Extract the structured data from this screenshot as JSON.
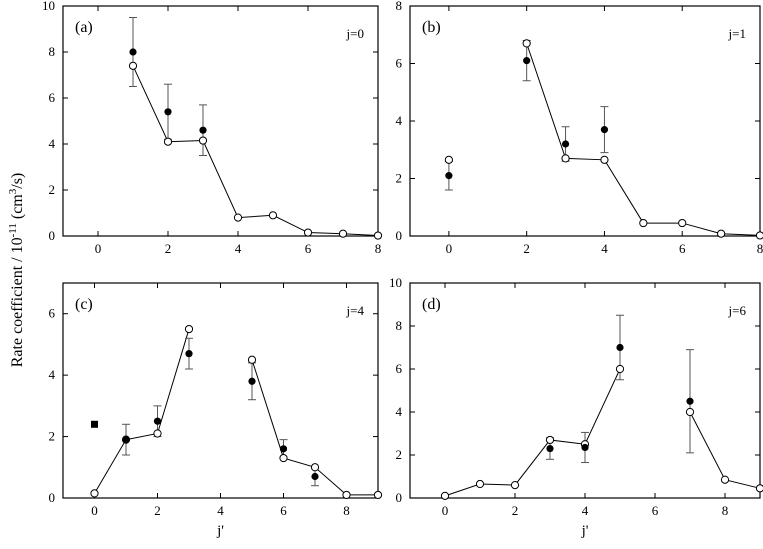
{
  "figure": {
    "ylabel_main": "Rate coefficient / 10",
    "ylabel_exp": "-11",
    "ylabel_unit": " (cm",
    "ylabel_unit_exp": "3",
    "ylabel_end": "/s)"
  },
  "chart_data": [
    {
      "type": "scatter",
      "panel_label": "(a)",
      "annotation": "j=0",
      "xlabel": "",
      "xlim": [
        -1,
        8
      ],
      "ylim": [
        0,
        10
      ],
      "xticks": [
        0,
        2,
        4,
        6,
        8
      ],
      "yticks": [
        0,
        2,
        4,
        6,
        8,
        10
      ],
      "open_line": {
        "x": [
          1,
          2,
          3,
          4,
          5,
          6,
          7,
          8
        ],
        "y": [
          7.4,
          4.1,
          4.15,
          0.8,
          0.9,
          0.15,
          0.1,
          0.02
        ]
      },
      "filled": {
        "x": [
          1,
          2,
          3
        ],
        "y": [
          8.0,
          5.4,
          4.6
        ],
        "err": [
          1.5,
          1.2,
          1.1
        ]
      },
      "grid": false
    },
    {
      "type": "scatter",
      "panel_label": "(b)",
      "annotation": "j=1",
      "xlabel": "",
      "xlim": [
        -1,
        8
      ],
      "ylim": [
        0,
        8
      ],
      "xticks": [
        0,
        2,
        4,
        6,
        8
      ],
      "yticks": [
        0,
        2,
        4,
        6,
        8
      ],
      "open_line": {
        "x": [
          2,
          3,
          4,
          5,
          6,
          7,
          8
        ],
        "y": [
          6.7,
          2.7,
          2.65,
          0.45,
          0.45,
          0.08,
          0.02
        ]
      },
      "open_isolated": {
        "x": [
          0
        ],
        "y": [
          2.65
        ]
      },
      "filled": {
        "x": [
          0,
          2,
          3,
          4
        ],
        "y": [
          2.1,
          6.1,
          3.2,
          3.7
        ],
        "err": [
          0.5,
          0.7,
          0.6,
          0.8
        ]
      },
      "grid": false
    },
    {
      "type": "scatter",
      "panel_label": "(c)",
      "annotation": "j=4",
      "xlabel": "j'",
      "xlim": [
        -1,
        9
      ],
      "ylim": [
        0,
        7
      ],
      "xticks": [
        0,
        2,
        4,
        6,
        8
      ],
      "yticks": [
        0,
        2,
        4,
        6
      ],
      "open_line_segments": [
        {
          "x": [
            0,
            1,
            2,
            3
          ],
          "y": [
            0.15,
            1.9,
            2.1,
            5.5
          ]
        },
        {
          "x": [
            5,
            6,
            7,
            8,
            9
          ],
          "y": [
            4.5,
            1.3,
            1.0,
            0.1,
            0.1
          ]
        }
      ],
      "filled": {
        "x": [
          0,
          1,
          2,
          3,
          5,
          6,
          7
        ],
        "y": [
          2.4,
          1.9,
          2.5,
          4.7,
          3.8,
          1.6,
          0.7
        ],
        "err": [
          0,
          0.5,
          0.5,
          0.5,
          0.6,
          0.3,
          0.3
        ]
      },
      "grid": false
    },
    {
      "type": "scatter",
      "panel_label": "(d)",
      "annotation": "j=6",
      "xlabel": "j'",
      "xlim": [
        -1,
        9
      ],
      "ylim": [
        0,
        10
      ],
      "xticks": [
        0,
        2,
        4,
        6,
        8
      ],
      "yticks": [
        0,
        2,
        4,
        6,
        8,
        10
      ],
      "open_line_segments": [
        {
          "x": [
            0,
            1,
            2,
            3,
            4,
            5
          ],
          "y": [
            0.1,
            0.65,
            0.6,
            2.7,
            2.5,
            6.0
          ]
        },
        {
          "x": [
            7,
            8,
            9
          ],
          "y": [
            4.0,
            0.85,
            0.45
          ]
        }
      ],
      "filled": {
        "x": [
          3,
          4,
          5,
          7
        ],
        "y": [
          2.3,
          2.35,
          7.0,
          4.5
        ],
        "err": [
          0.5,
          0.7,
          1.5,
          2.4
        ]
      },
      "grid": false
    }
  ]
}
